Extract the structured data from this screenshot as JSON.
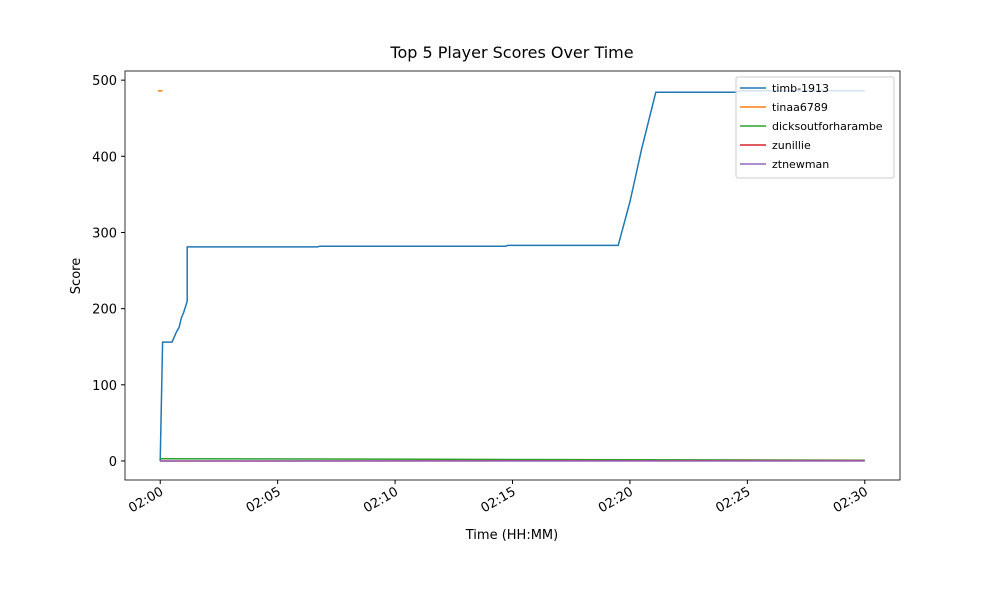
{
  "chart_data": {
    "type": "line",
    "title": "Top 5 Player Scores Over Time",
    "x_label": "Time (HH:MM)",
    "y_label": "Score",
    "xlim": [
      -1.5,
      31.5
    ],
    "ylim": [
      -25,
      512
    ],
    "xticks": [
      {
        "value": 0,
        "label": "02:00"
      },
      {
        "value": 5,
        "label": "02:05"
      },
      {
        "value": 10,
        "label": "02:10"
      },
      {
        "value": 15,
        "label": "02:15"
      },
      {
        "value": 20,
        "label": "02:20"
      },
      {
        "value": 25,
        "label": "02:25"
      },
      {
        "value": 30,
        "label": "02:30"
      }
    ],
    "yticks": [
      0,
      100,
      200,
      300,
      400,
      500
    ],
    "legend": "upper right",
    "series": [
      {
        "name": "timb-1913",
        "color": "#1f77b4",
        "x": [
          0,
          0.1,
          0.5,
          0.7,
          0.8,
          0.9,
          1.0,
          1.1,
          1.15,
          1.15,
          6.7,
          6.8,
          14.7,
          14.8,
          19.5,
          20,
          20.5,
          21.1,
          24.5,
          24.7,
          30
        ],
        "values": [
          0,
          156,
          156,
          170,
          175,
          188,
          195,
          205,
          210,
          281,
          281,
          282,
          282,
          283,
          283,
          340,
          410,
          484,
          484,
          486,
          486
        ]
      },
      {
        "name": "tinaa6789",
        "color": "#ff7f0e",
        "x": [
          -0.1,
          0.1
        ],
        "values": [
          486,
          486
        ]
      },
      {
        "name": "dicksoutforharambe",
        "color": "#2ca02c",
        "x": [
          0,
          30
        ],
        "values": [
          3,
          1
        ]
      },
      {
        "name": "zunillie",
        "color": "#d62728",
        "x": [
          0,
          30
        ],
        "values": [
          0,
          0.5
        ]
      },
      {
        "name": "ztnewman",
        "color": "#9467bd",
        "x": [
          0,
          30
        ],
        "values": [
          0,
          0
        ]
      }
    ]
  }
}
